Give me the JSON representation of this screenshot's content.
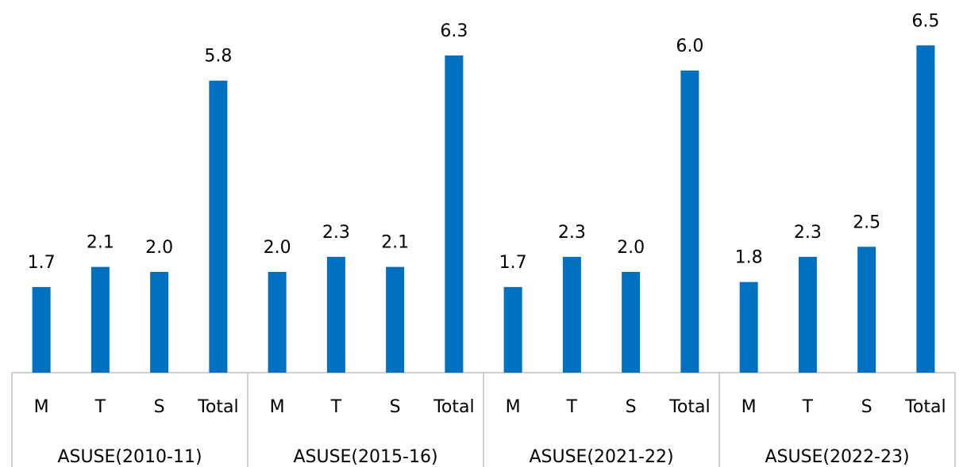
{
  "chart_data": {
    "type": "bar",
    "categories": [
      "M",
      "T",
      "S",
      "Total",
      "M",
      "T",
      "S",
      "Total",
      "M",
      "T",
      "S",
      "Total",
      "M",
      "T",
      "S",
      "Total"
    ],
    "groups": [
      "ASUSE(2010-11)",
      "ASUSE(2015-16)",
      "ASUSE(2021-22)",
      "ASUSE(2022-23)"
    ],
    "values": [
      1.7,
      2.1,
      2.0,
      5.8,
      2.0,
      2.3,
      2.1,
      6.3,
      1.7,
      2.3,
      2.0,
      6.0,
      1.8,
      2.3,
      2.5,
      6.5
    ],
    "value_labels": [
      "1.7",
      "2.1",
      "2.0",
      "5.8",
      "2.0",
      "2.3",
      "2.1",
      "6.3",
      "1.7",
      "2.3",
      "2.0",
      "6.0",
      "1.8",
      "2.3",
      "2.5",
      "6.5"
    ],
    "color": "#0070c0"
  }
}
